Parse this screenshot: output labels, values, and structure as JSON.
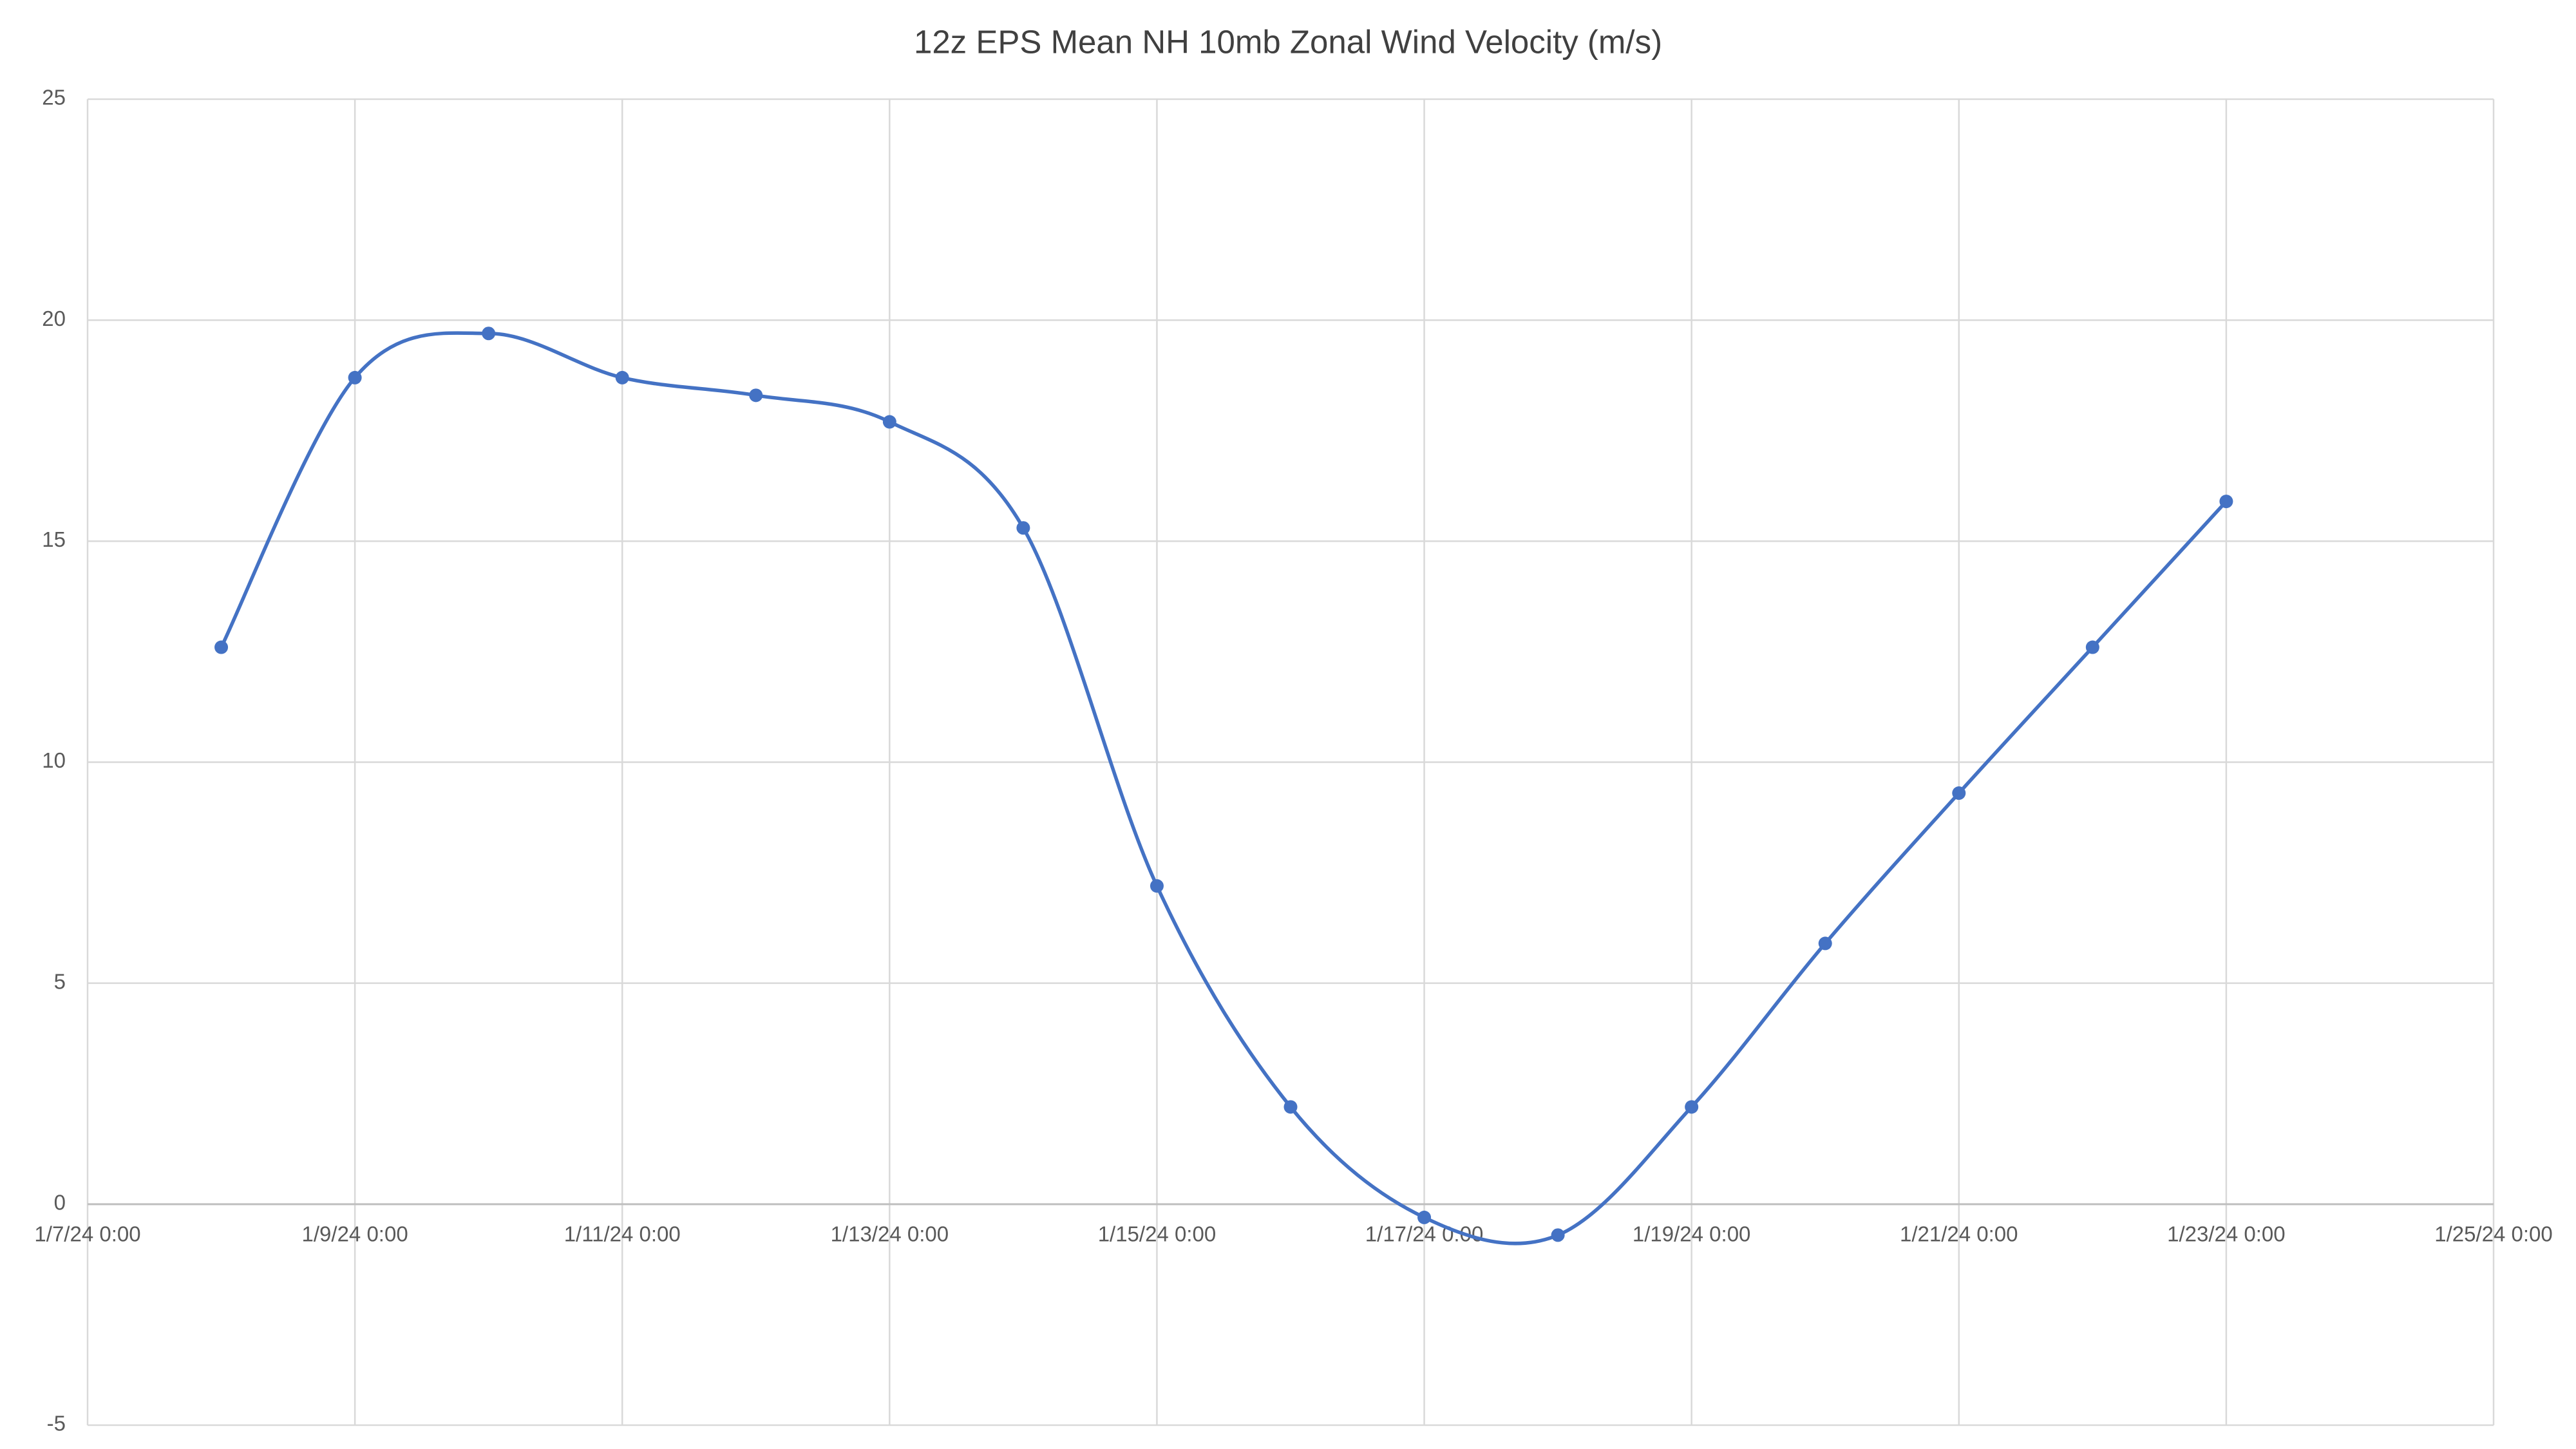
{
  "chart_data": {
    "type": "line",
    "title": "12z EPS Mean NH 10mb Zonal Wind Velocity (m/s)",
    "x": [
      "1/8/24 0:00",
      "1/9/24 0:00",
      "1/10/24 0:00",
      "1/11/24 0:00",
      "1/12/24 0:00",
      "1/13/24 0:00",
      "1/14/24 0:00",
      "1/15/24 0:00",
      "1/16/24 0:00",
      "1/17/24 0:00",
      "1/18/24 0:00",
      "1/19/24 0:00",
      "1/20/24 0:00",
      "1/21/24 0:00",
      "1/22/24 0:00",
      "1/23/24 0:00"
    ],
    "series": [
      {
        "name": "Zonal Wind",
        "color": "#4472c4",
        "values": [
          12.6,
          18.7,
          19.7,
          18.7,
          18.3,
          17.7,
          15.3,
          7.2,
          2.2,
          -0.3,
          -0.7,
          2.2,
          5.9,
          9.3,
          12.6,
          15.9
        ]
      }
    ],
    "xlim": [
      "1/7/24 0:00",
      "1/25/24 0:00"
    ],
    "xticks": [
      "1/7/24 0:00",
      "1/9/24 0:00",
      "1/11/24 0:00",
      "1/13/24 0:00",
      "1/15/24 0:00",
      "1/17/24 0:00",
      "1/19/24 0:00",
      "1/21/24 0:00",
      "1/23/24 0:00",
      "1/25/24 0:00"
    ],
    "ylim": [
      -5,
      25
    ],
    "yticks": [
      -5,
      0,
      5,
      10,
      15,
      20,
      25
    ],
    "grid": true,
    "smooth": true
  }
}
